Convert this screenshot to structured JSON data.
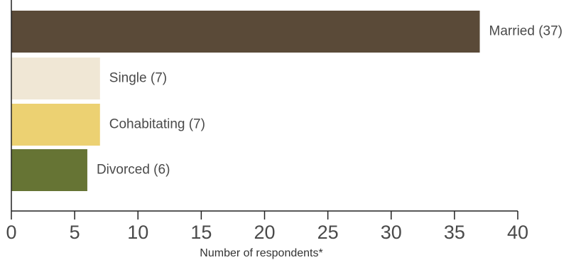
{
  "chart_data": {
    "type": "bar",
    "orientation": "horizontal",
    "categories": [
      "Married",
      "Single",
      "Cohabitating",
      "Divorced"
    ],
    "values": [
      37,
      7,
      7,
      6
    ],
    "labels": [
      "Married (37)",
      "Single (7)",
      "Cohabitating (7)",
      "Divorced (6)"
    ],
    "colors": [
      "#5a4a38",
      "#f0e7d5",
      "#ecd172",
      "#667434"
    ],
    "title": "",
    "xlabel": "Number of respondents*",
    "ylabel": "",
    "xlim": [
      0,
      40
    ],
    "xticks": [
      0,
      5,
      10,
      15,
      20,
      25,
      30,
      35,
      40
    ],
    "grid": false,
    "legend": "none"
  }
}
